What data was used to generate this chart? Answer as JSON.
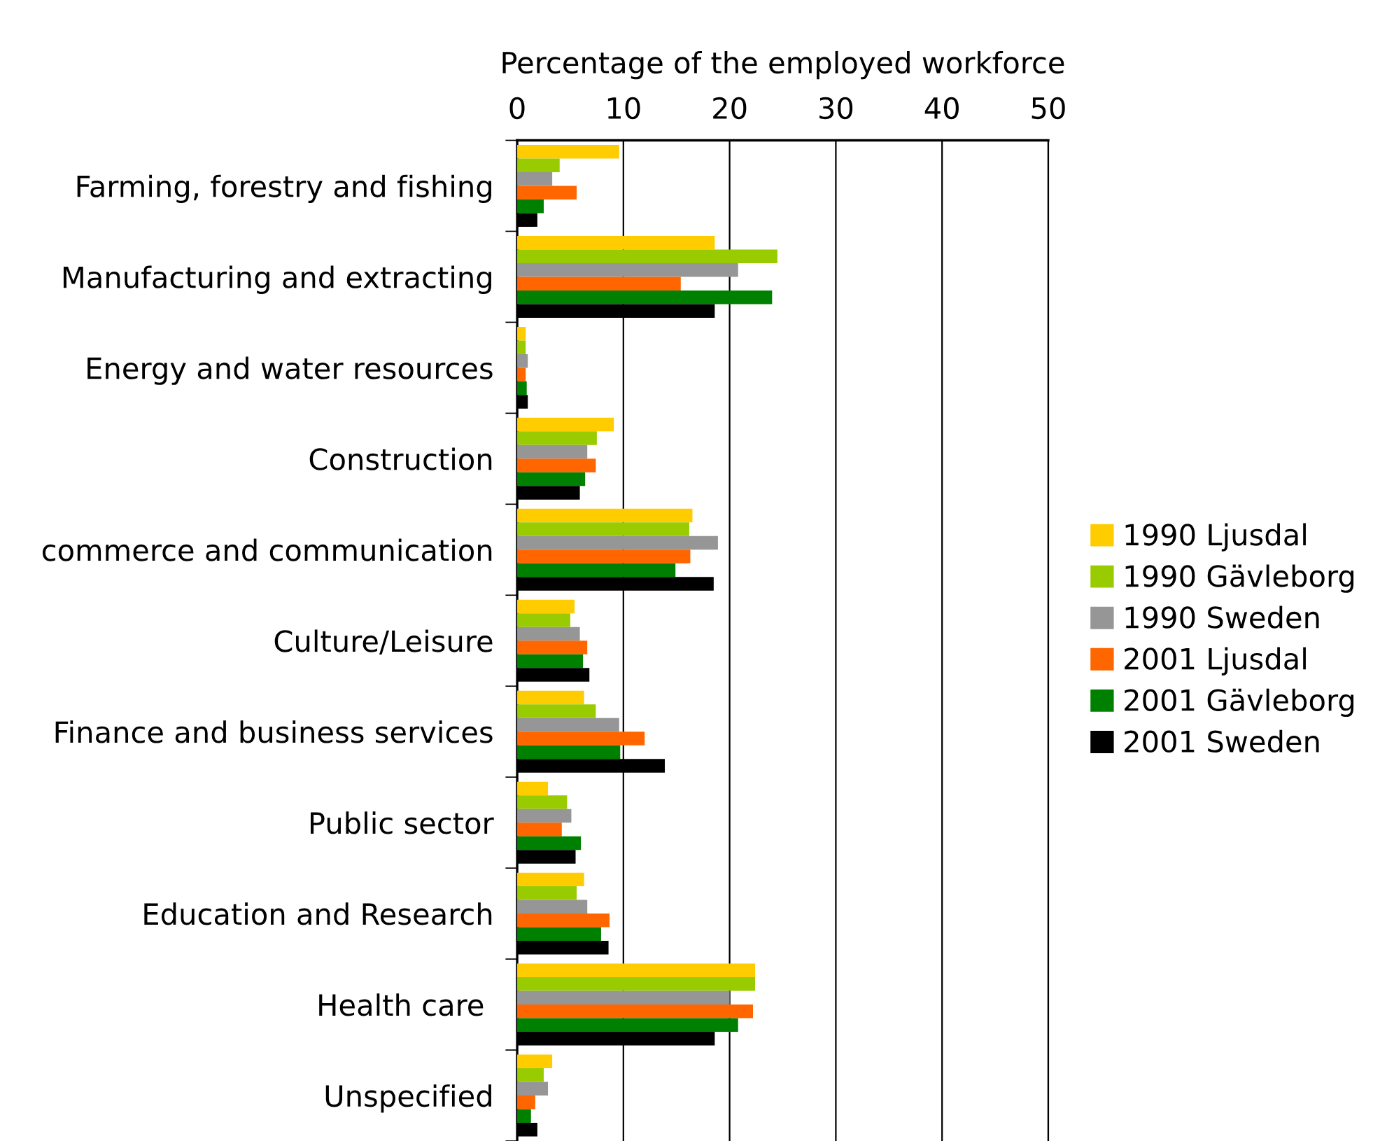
{
  "chart_data": {
    "type": "bar",
    "orientation": "horizontal",
    "xlabel": "Percentage of the employed workforce",
    "categories": [
      "Farming, forestry and fishing",
      "Manufacturing and extracting",
      "Energy and water resources",
      "Construction",
      "commerce and communication",
      "Culture/Leisure",
      "Finance and business services",
      "Public sector",
      "Education and Research",
      "Health care ",
      "Unspecified"
    ],
    "series": [
      {
        "name": "1990 Ljusdal",
        "color": "#ffcc00",
        "values": [
          9.6,
          18.6,
          0.8,
          9.1,
          16.5,
          5.4,
          6.3,
          2.9,
          6.3,
          22.4,
          3.3
        ]
      },
      {
        "name": "1990 Gävleborg",
        "color": "#99cc00",
        "values": [
          4.0,
          24.5,
          0.8,
          7.5,
          16.2,
          5.0,
          7.4,
          4.7,
          5.6,
          22.4,
          2.5
        ]
      },
      {
        "name": "1990 Sweden",
        "color": "#969696",
        "values": [
          3.3,
          20.8,
          1.0,
          6.6,
          18.9,
          5.9,
          9.6,
          5.1,
          6.6,
          20.0,
          2.9
        ]
      },
      {
        "name": "2001 Ljusdal",
        "color": "#ff6600",
        "values": [
          5.6,
          15.4,
          0.8,
          7.4,
          16.3,
          6.6,
          12.0,
          4.2,
          8.7,
          22.2,
          1.7
        ]
      },
      {
        "name": "2001 Gävleborg",
        "color": "#008000",
        "values": [
          2.5,
          24.0,
          0.9,
          6.4,
          14.9,
          6.2,
          9.7,
          6.0,
          7.9,
          20.8,
          1.3
        ]
      },
      {
        "name": "2001 Sweden",
        "color": "#000000",
        "values": [
          1.9,
          18.6,
          1.0,
          5.9,
          18.5,
          6.8,
          13.9,
          5.5,
          8.6,
          18.6,
          1.9
        ]
      }
    ],
    "xlim": [
      0,
      50
    ],
    "xticks": [
      0,
      10,
      20,
      30,
      40,
      50
    ],
    "grid": "x",
    "legend": "right"
  }
}
